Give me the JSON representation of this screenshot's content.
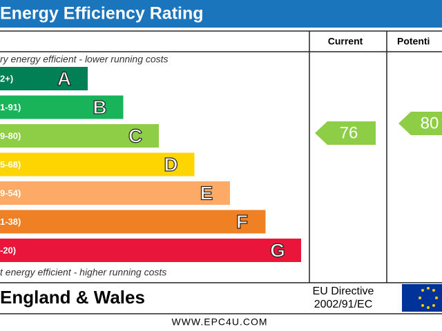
{
  "header": {
    "title": "Energy Efficiency Rating"
  },
  "columns": {
    "current": "Current",
    "potential": "Potenti"
  },
  "top_note": "ry energy efficient - lower running costs",
  "bottom_note": "t energy efficient - higher running costs",
  "bands": [
    {
      "range": "2+)",
      "letter": "A",
      "color": "#008054"
    },
    {
      "range": "1-91)",
      "letter": "B",
      "color": "#19b459"
    },
    {
      "range": "9-80)",
      "letter": "C",
      "color": "#8dce46"
    },
    {
      "range": "5-68)",
      "letter": "D",
      "color": "#ffd500"
    },
    {
      "range": "9-54)",
      "letter": "E",
      "color": "#fcaa65"
    },
    {
      "range": "1-38)",
      "letter": "F",
      "color": "#ef8023"
    },
    {
      "range": "-20)",
      "letter": "G",
      "color": "#e9153b"
    }
  ],
  "ratings": {
    "current": "76",
    "potential": "80",
    "color": "#8dce46"
  },
  "footer": {
    "region": "England & Wales",
    "directive_line1": "EU Directive",
    "directive_line2": "2002/91/EC",
    "website": "WWW.EPC4U.COM"
  }
}
